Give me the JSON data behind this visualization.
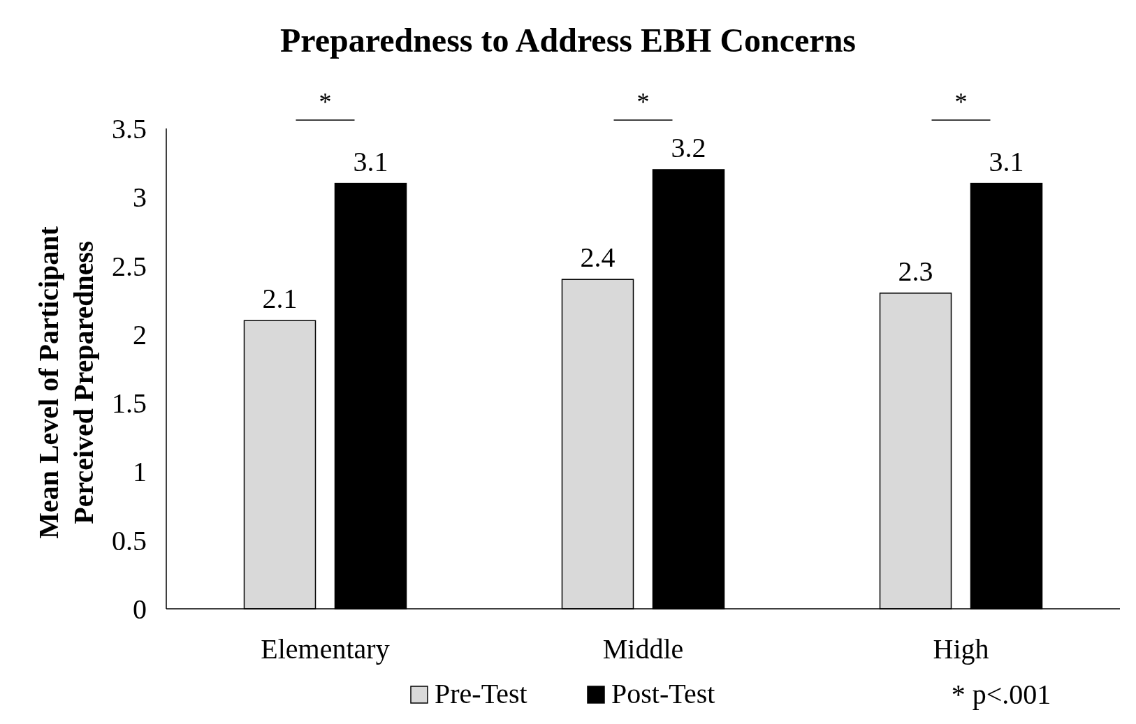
{
  "chart_data": {
    "type": "bar",
    "title": "Preparedness to Address EBH Concerns",
    "ylabel": "Mean Level of Participant Perceived Preparedness",
    "categories": [
      "Elementary",
      "Middle",
      "High"
    ],
    "series": [
      {
        "name": "Pre-Test",
        "color": "#d9d9d9",
        "values": [
          2.1,
          2.4,
          2.3
        ]
      },
      {
        "name": "Post-Test",
        "color": "#000000",
        "values": [
          3.1,
          3.2,
          3.1
        ]
      }
    ],
    "ylim": [
      0,
      3.5
    ],
    "yticks": [
      0,
      0.5,
      1,
      1.5,
      2,
      2.5,
      3,
      3.5
    ],
    "grid": false,
    "legend": "bottom",
    "data_labels": true,
    "annotations": [
      "*",
      "*",
      "*",
      "* p<.001"
    ]
  }
}
